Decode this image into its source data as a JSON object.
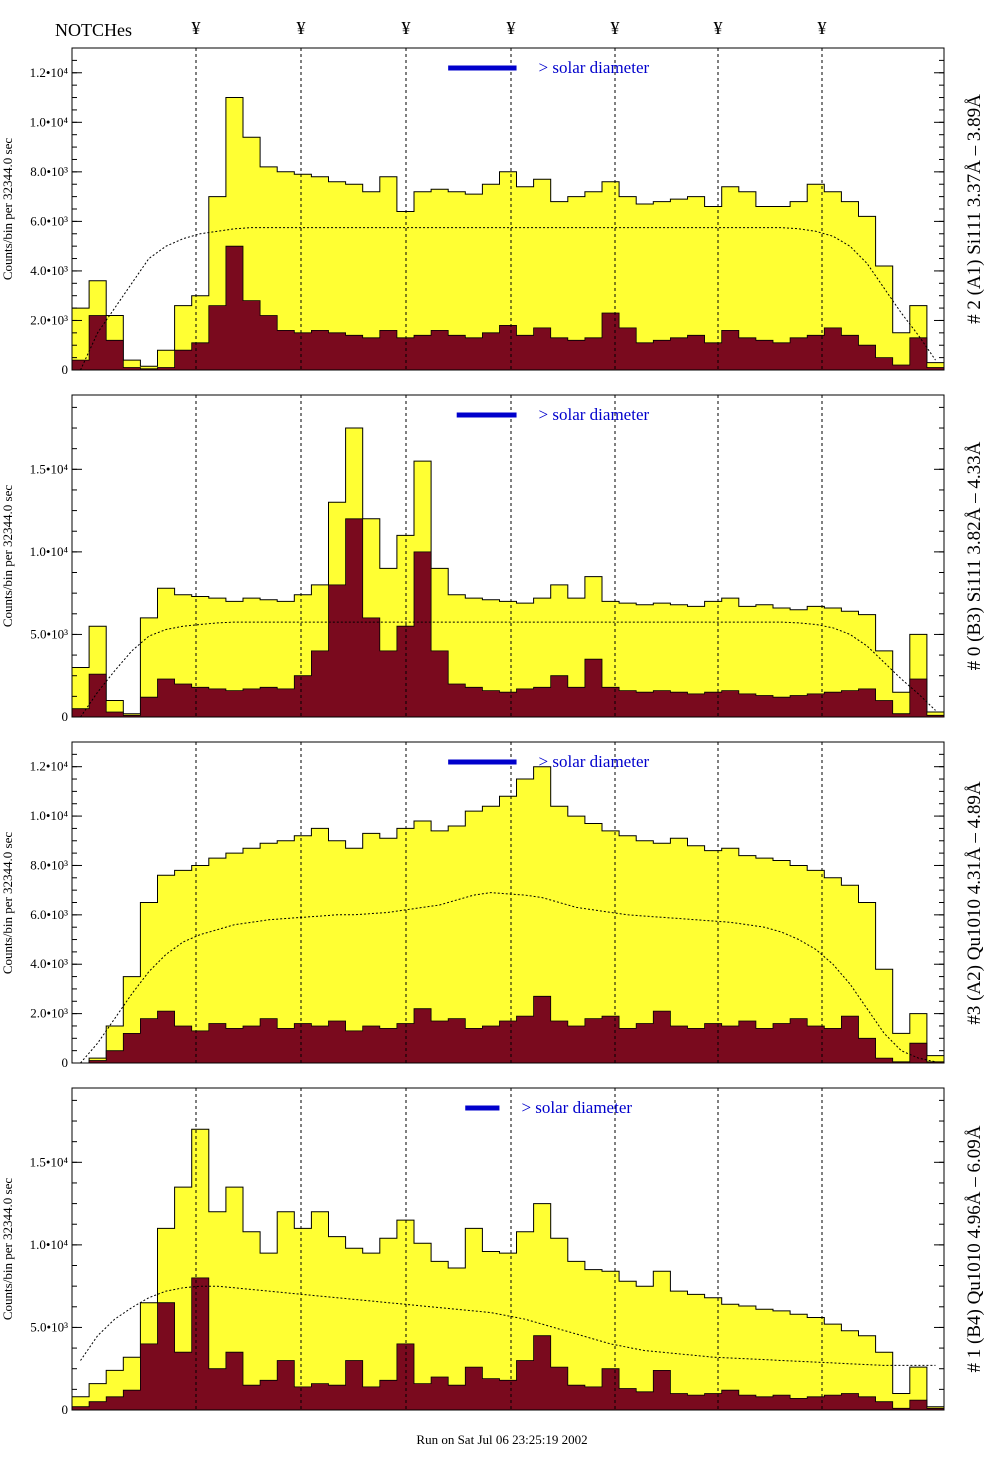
{
  "header": {
    "notches_label": "NOTCHes",
    "notch_marker": "¥",
    "notch_count": 7
  },
  "footer": {
    "run_text": "Run on Sat Jul 06 23:25:19 2002"
  },
  "colors": {
    "fill_high": "#ffff33",
    "fill_low": "#7a0a1e",
    "annotation_blue": "#0000cc",
    "annotation_black": "#000000"
  },
  "solar_diameter_label": "> solar diameter",
  "chart_data": [
    {
      "type": "area",
      "panel_label": "# 2 (A1) Si111  3.37Å – 3.89Å",
      "ylabel": "Counts/bin per  32344.0 sec",
      "yticks": [
        "0",
        "2.0•10³",
        "4.0•10³",
        "6.0•10³",
        "8.0•10³",
        "1.0•10⁴",
        "1.2•10⁴"
      ],
      "ytick_values": [
        0,
        2000,
        4000,
        6000,
        8000,
        10000,
        12000
      ],
      "ylim": [
        0,
        13000
      ],
      "x": [
        0,
        2,
        4,
        6,
        8,
        10,
        12,
        14,
        16,
        18,
        20,
        22,
        24,
        26,
        28,
        30,
        32,
        34,
        36,
        38,
        40,
        42,
        44,
        46,
        48,
        50,
        52,
        54,
        56,
        58,
        60,
        62,
        64,
        66,
        68,
        70,
        72,
        74,
        76,
        78,
        80,
        82,
        84,
        86,
        88,
        90,
        92,
        94,
        96,
        98,
        100
      ],
      "series": [
        {
          "values": [
            2500,
            3600,
            2200,
            400,
            150,
            800,
            2600,
            3000,
            7000,
            11000,
            9400,
            8200,
            8000,
            7900,
            7800,
            7600,
            7500,
            7200,
            7800,
            6400,
            7200,
            7300,
            7200,
            7100,
            7500,
            8000,
            7400,
            7700,
            6800,
            7000,
            7200,
            7600,
            7000,
            6700,
            6800,
            6900,
            7000,
            6600,
            7400,
            7200,
            6600,
            6600,
            6800,
            7500,
            7200,
            6800,
            6200,
            4200,
            1500,
            2600,
            300
          ]
        },
        {
          "values": [
            400,
            2200,
            1200,
            100,
            50,
            100,
            800,
            1100,
            2600,
            5000,
            2800,
            2200,
            1600,
            1500,
            1600,
            1500,
            1400,
            1300,
            1600,
            1300,
            1400,
            1600,
            1400,
            1300,
            1500,
            1800,
            1400,
            1700,
            1300,
            1200,
            1300,
            2300,
            1700,
            1100,
            1200,
            1300,
            1400,
            1100,
            1600,
            1300,
            1200,
            1100,
            1300,
            1400,
            1700,
            1400,
            1000,
            500,
            200,
            1300,
            100
          ]
        },
        {
          "values": [
            0,
            1500,
            2500,
            3500,
            4500,
            5000,
            5300,
            5500,
            5600,
            5700,
            5750,
            5750,
            5750,
            5750,
            5750,
            5750,
            5750,
            5750,
            5750,
            5750,
            5750,
            5750,
            5750,
            5750,
            5750,
            5750,
            5750,
            5750,
            5750,
            5750,
            5750,
            5750,
            5750,
            5750,
            5750,
            5750,
            5750,
            5750,
            5750,
            5750,
            5750,
            5750,
            5700,
            5600,
            5400,
            5000,
            4300,
            3300,
            2300,
            1400,
            400
          ]
        }
      ],
      "solar_bar": [
        44,
        52
      ]
    },
    {
      "type": "area",
      "panel_label": "# 0 (B3) Si111  3.82Å – 4.33Å",
      "ylabel": "Counts/bin per  32344.0 sec",
      "yticks": [
        "0",
        "5.0•10³",
        "1.0•10⁴",
        "1.5•10⁴"
      ],
      "ytick_values": [
        0,
        5000,
        10000,
        15000
      ],
      "ylim": [
        0,
        19500
      ],
      "x": [
        0,
        2,
        4,
        6,
        8,
        10,
        12,
        14,
        16,
        18,
        20,
        22,
        24,
        26,
        28,
        30,
        32,
        34,
        36,
        38,
        40,
        42,
        44,
        46,
        48,
        50,
        52,
        54,
        56,
        58,
        60,
        62,
        64,
        66,
        68,
        70,
        72,
        74,
        76,
        78,
        80,
        82,
        84,
        86,
        88,
        90,
        92,
        94,
        96,
        98,
        100
      ],
      "series": [
        {
          "values": [
            3000,
            5500,
            1000,
            200,
            6000,
            7800,
            7400,
            7300,
            7200,
            7000,
            7200,
            7100,
            7000,
            7400,
            8000,
            13000,
            17500,
            12000,
            9000,
            11000,
            15500,
            9000,
            7400,
            7200,
            7100,
            7000,
            6900,
            7200,
            8000,
            7200,
            8500,
            7000,
            6900,
            6800,
            6900,
            6800,
            6700,
            7000,
            7200,
            6700,
            6800,
            6600,
            6500,
            6700,
            6600,
            6400,
            6200,
            4000,
            1500,
            5000,
            300
          ]
        },
        {
          "values": [
            500,
            2600,
            300,
            100,
            1200,
            2300,
            2000,
            1800,
            1700,
            1600,
            1700,
            1800,
            1700,
            2500,
            4000,
            8000,
            12000,
            6000,
            4000,
            5500,
            10000,
            4000,
            2000,
            1800,
            1600,
            1500,
            1700,
            1800,
            2500,
            1800,
            3500,
            1800,
            1600,
            1500,
            1600,
            1500,
            1400,
            1500,
            1600,
            1400,
            1300,
            1200,
            1300,
            1400,
            1500,
            1600,
            1700,
            1000,
            200,
            2300,
            100
          ]
        },
        {
          "values": [
            0,
            1500,
            2800,
            4000,
            4900,
            5300,
            5500,
            5600,
            5700,
            5750,
            5750,
            5750,
            5750,
            5750,
            5750,
            5750,
            5750,
            5750,
            5750,
            5750,
            5750,
            5750,
            5750,
            5750,
            5750,
            5750,
            5750,
            5750,
            5750,
            5750,
            5750,
            5750,
            5750,
            5750,
            5750,
            5750,
            5750,
            5750,
            5750,
            5750,
            5750,
            5750,
            5700,
            5600,
            5400,
            5000,
            4300,
            3300,
            2300,
            1400,
            400
          ]
        }
      ],
      "solar_bar": [
        45,
        52
      ]
    },
    {
      "type": "area",
      "panel_label": "#3 (A2) Qu1010  4.31Å – 4.89Å",
      "ylabel": "Counts/bin per  32344.0 sec",
      "yticks": [
        "0",
        "2.0•10³",
        "4.0•10³",
        "6.0•10³",
        "8.0•10³",
        "1.0•10⁴",
        "1.2•10⁴"
      ],
      "ytick_values": [
        0,
        2000,
        4000,
        6000,
        8000,
        10000,
        12000
      ],
      "ylim": [
        0,
        13000
      ],
      "x": [
        0,
        2,
        4,
        6,
        8,
        10,
        12,
        14,
        16,
        18,
        20,
        22,
        24,
        26,
        28,
        30,
        32,
        34,
        36,
        38,
        40,
        42,
        44,
        46,
        48,
        50,
        52,
        54,
        56,
        58,
        60,
        62,
        64,
        66,
        68,
        70,
        72,
        74,
        76,
        78,
        80,
        82,
        84,
        86,
        88,
        90,
        92,
        94,
        96,
        98,
        100
      ],
      "series": [
        {
          "values": [
            0,
            200,
            1500,
            3500,
            6500,
            7600,
            7800,
            8000,
            8300,
            8500,
            8700,
            8900,
            9000,
            9200,
            9500,
            9000,
            8700,
            9300,
            9100,
            9500,
            9800,
            9400,
            9600,
            10200,
            10400,
            10800,
            11500,
            12000,
            10400,
            10000,
            9700,
            9400,
            9200,
            9000,
            8900,
            9100,
            8800,
            8600,
            8700,
            8400,
            8300,
            8200,
            8000,
            7800,
            7500,
            7200,
            6500,
            3800,
            1200,
            2000,
            300
          ]
        },
        {
          "values": [
            0,
            100,
            500,
            1200,
            1800,
            2100,
            1500,
            1300,
            1600,
            1400,
            1500,
            1800,
            1400,
            1600,
            1500,
            1700,
            1300,
            1500,
            1400,
            1600,
            2200,
            1700,
            1800,
            1400,
            1500,
            1700,
            1900,
            2700,
            1700,
            1500,
            1800,
            1900,
            1400,
            1600,
            2100,
            1500,
            1400,
            1600,
            1500,
            1700,
            1400,
            1600,
            1800,
            1500,
            1400,
            1900,
            1000,
            200,
            50,
            800,
            50
          ]
        },
        {
          "values": [
            0,
            800,
            1800,
            2800,
            3700,
            4400,
            4900,
            5200,
            5400,
            5600,
            5700,
            5800,
            5850,
            5900,
            5950,
            6000,
            6000,
            6050,
            6100,
            6200,
            6300,
            6400,
            6600,
            6800,
            6900,
            6850,
            6800,
            6700,
            6500,
            6300,
            6200,
            6100,
            6000,
            5950,
            5900,
            5850,
            5800,
            5750,
            5700,
            5600,
            5500,
            5300,
            5000,
            4600,
            4000,
            3200,
            2200,
            1200,
            500,
            200,
            50
          ]
        }
      ],
      "solar_bar": [
        44,
        52
      ]
    },
    {
      "type": "area",
      "panel_label": "# 1 (B4) Qu1010 4.96Å – 6.09Å",
      "ylabel": "Counts/bin per  32344.0 sec",
      "yticks": [
        "0",
        "5.0•10³",
        "1.0•10⁴",
        "1.5•10⁴"
      ],
      "ytick_values": [
        0,
        5000,
        10000,
        15000
      ],
      "ylim": [
        0,
        19500
      ],
      "x": [
        0,
        2,
        4,
        6,
        8,
        10,
        12,
        14,
        16,
        18,
        20,
        22,
        24,
        26,
        28,
        30,
        32,
        34,
        36,
        38,
        40,
        42,
        44,
        46,
        48,
        50,
        52,
        54,
        56,
        58,
        60,
        62,
        64,
        66,
        68,
        70,
        72,
        74,
        76,
        78,
        80,
        82,
        84,
        86,
        88,
        90,
        92,
        94,
        96,
        98,
        100
      ],
      "series": [
        {
          "values": [
            800,
            1600,
            2400,
            3200,
            6500,
            11000,
            13500,
            17000,
            12000,
            13500,
            10800,
            9500,
            12000,
            11000,
            12000,
            10500,
            9800,
            9500,
            10400,
            11500,
            10100,
            9000,
            8600,
            11000,
            9600,
            9500,
            10800,
            12500,
            10400,
            9000,
            8500,
            8400,
            7800,
            7500,
            8400,
            7200,
            7000,
            6800,
            6400,
            6300,
            6100,
            6000,
            5800,
            5600,
            5200,
            4800,
            4500,
            3500,
            1000,
            2600,
            200
          ]
        },
        {
          "values": [
            200,
            500,
            800,
            1200,
            4000,
            6500,
            3500,
            8000,
            2500,
            3500,
            1500,
            1800,
            3000,
            1400,
            1600,
            1500,
            3000,
            1400,
            1800,
            4000,
            1600,
            2000,
            1500,
            2600,
            1900,
            1800,
            3000,
            4500,
            2600,
            1500,
            1400,
            2500,
            1300,
            1100,
            2400,
            1000,
            900,
            1000,
            1200,
            900,
            800,
            900,
            700,
            800,
            900,
            1000,
            800,
            500,
            100,
            600,
            100
          ]
        },
        {
          "values": [
            3000,
            4500,
            5500,
            6200,
            6800,
            7200,
            7400,
            7500,
            7500,
            7400,
            7300,
            7200,
            7100,
            7000,
            6900,
            6800,
            6700,
            6600,
            6500,
            6400,
            6300,
            6200,
            6100,
            6000,
            5900,
            5700,
            5500,
            5200,
            4900,
            4600,
            4300,
            4000,
            3800,
            3600,
            3500,
            3400,
            3300,
            3200,
            3150,
            3100,
            3050,
            3000,
            2950,
            2900,
            2850,
            2800,
            2750,
            2700,
            2700,
            2700,
            2700
          ]
        }
      ],
      "solar_bar": [
        46,
        50
      ]
    }
  ]
}
